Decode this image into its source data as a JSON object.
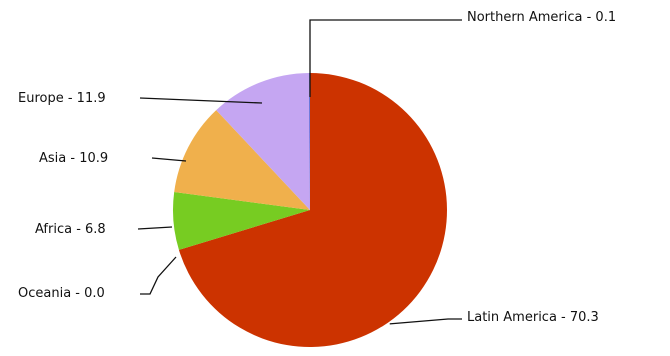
{
  "chart_data": {
    "type": "pie",
    "title": "",
    "categories": [
      "Latin America",
      "Oceania",
      "Africa",
      "Asia",
      "Europe",
      "Northern America"
    ],
    "values": [
      70.3,
      0.0,
      6.8,
      10.9,
      11.9,
      0.1
    ],
    "labels": [
      "Latin America - 70.3",
      "Oceania - 0.0",
      "Africa - 6.8",
      "Asia - 10.9",
      "Europe - 11.9",
      "Northern America - 0.1"
    ],
    "colors": [
      "#cc3300",
      "#d9d9d9",
      "#77cc22",
      "#f0b04c",
      "#c5a6f2",
      "#3355cc"
    ],
    "legend": "none",
    "label_style": "callouts-with-leader-lines"
  }
}
